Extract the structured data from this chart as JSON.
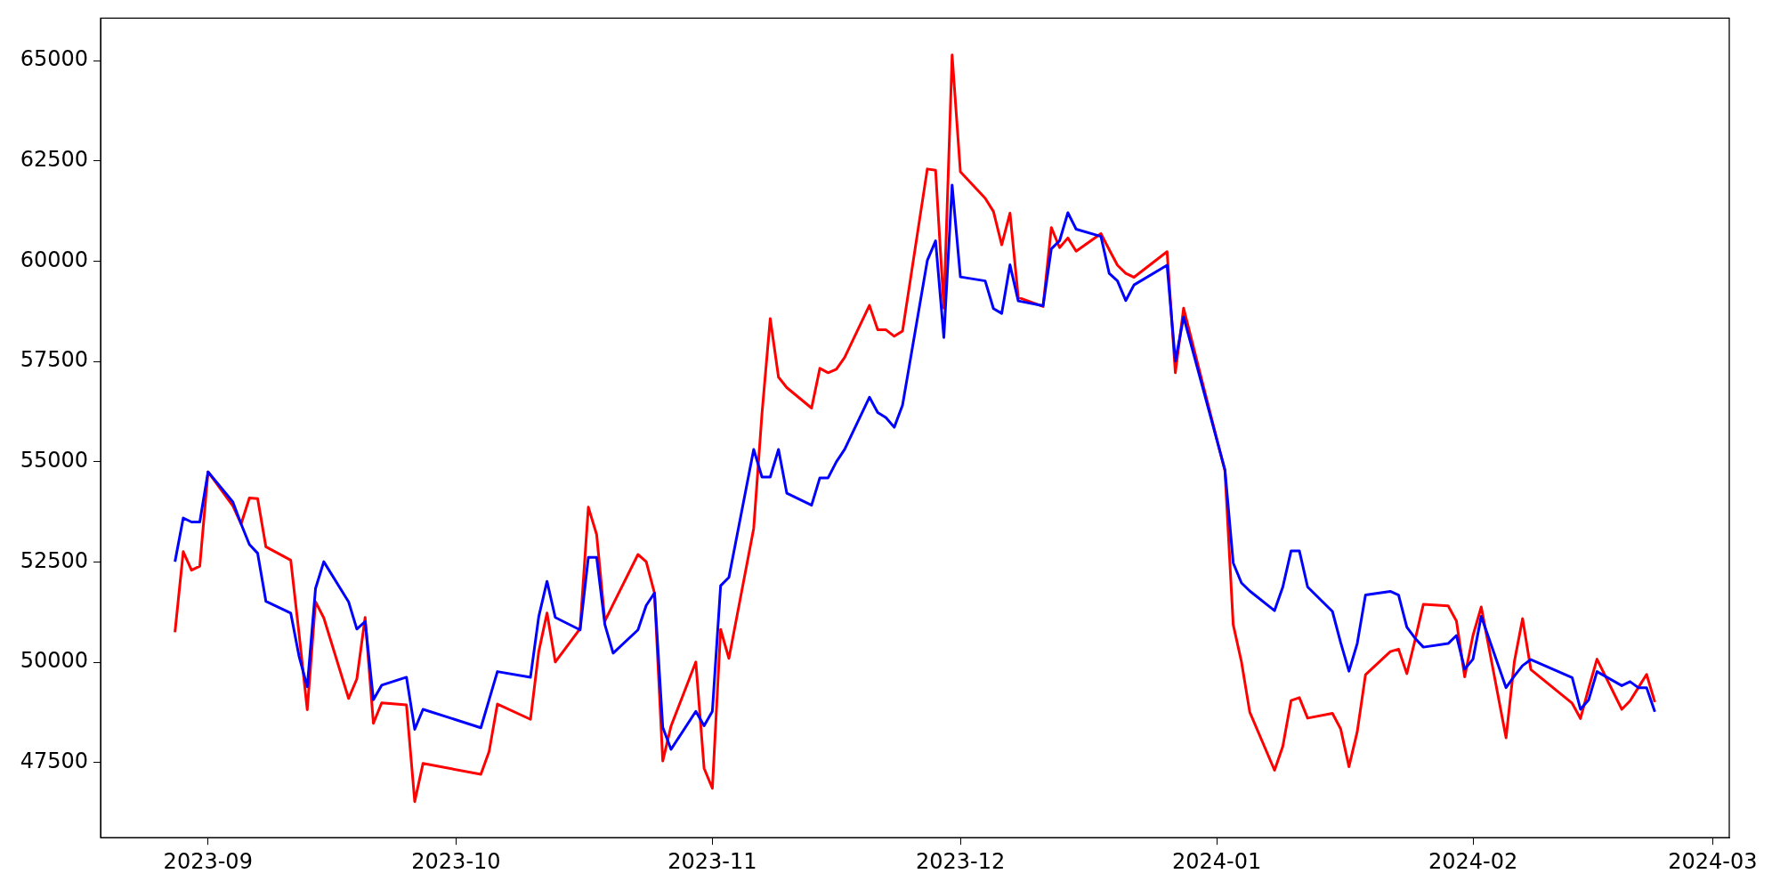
{
  "chart_data": {
    "type": "line",
    "x": [
      "2023-08-28",
      "2023-08-29",
      "2023-08-30",
      "2023-08-31",
      "2023-09-01",
      "2023-09-04",
      "2023-09-05",
      "2023-09-06",
      "2023-09-07",
      "2023-09-08",
      "2023-09-11",
      "2023-09-12",
      "2023-09-13",
      "2023-09-14",
      "2023-09-15",
      "2023-09-18",
      "2023-09-19",
      "2023-09-20",
      "2023-09-21",
      "2023-09-22",
      "2023-09-25",
      "2023-09-26",
      "2023-09-27",
      "2023-10-04",
      "2023-10-05",
      "2023-10-06",
      "2023-10-10",
      "2023-10-11",
      "2023-10-12",
      "2023-10-13",
      "2023-10-16",
      "2023-10-17",
      "2023-10-18",
      "2023-10-19",
      "2023-10-20",
      "2023-10-23",
      "2023-10-24",
      "2023-10-25",
      "2023-10-26",
      "2023-10-27",
      "2023-10-30",
      "2023-10-31",
      "2023-11-01",
      "2023-11-02",
      "2023-11-03",
      "2023-11-06",
      "2023-11-07",
      "2023-11-08",
      "2023-11-09",
      "2023-11-10",
      "2023-11-13",
      "2023-11-14",
      "2023-11-15",
      "2023-11-16",
      "2023-11-17",
      "2023-11-20",
      "2023-11-21",
      "2023-11-22",
      "2023-11-23",
      "2023-11-24",
      "2023-11-27",
      "2023-11-28",
      "2023-11-29",
      "2023-11-30",
      "2023-12-01",
      "2023-12-04",
      "2023-12-05",
      "2023-12-06",
      "2023-12-07",
      "2023-12-08",
      "2023-12-11",
      "2023-12-12",
      "2023-12-13",
      "2023-12-14",
      "2023-12-15",
      "2023-12-18",
      "2023-12-19",
      "2023-12-20",
      "2023-12-21",
      "2023-12-22",
      "2023-12-26",
      "2023-12-27",
      "2023-12-28",
      "2024-01-02",
      "2024-01-03",
      "2024-01-04",
      "2024-01-05",
      "2024-01-08",
      "2024-01-09",
      "2024-01-10",
      "2024-01-11",
      "2024-01-12",
      "2024-01-15",
      "2024-01-16",
      "2024-01-17",
      "2024-01-18",
      "2024-01-19",
      "2024-01-22",
      "2024-01-23",
      "2024-01-24",
      "2024-01-25",
      "2024-01-26",
      "2024-01-29",
      "2024-01-30",
      "2024-01-31",
      "2024-02-01",
      "2024-02-02",
      "2024-02-05",
      "2024-02-06",
      "2024-02-07",
      "2024-02-08",
      "2024-02-13",
      "2024-02-14",
      "2024-02-15",
      "2024-02-16",
      "2024-02-19",
      "2024-02-20",
      "2024-02-21",
      "2024-02-22",
      "2024-02-23"
    ],
    "series": [
      {
        "color": "#ff0000",
        "values": [
          50750,
          52760,
          52300,
          52400,
          54750,
          53900,
          53450,
          54100,
          54080,
          52880,
          52550,
          50730,
          48820,
          51510,
          51110,
          49100,
          49590,
          51120,
          48480,
          48990,
          48940,
          46530,
          47480,
          47210,
          47780,
          48960,
          48580,
          50270,
          51230,
          50010,
          50840,
          53870,
          53190,
          51030,
          51450,
          52690,
          52510,
          51730,
          47540,
          48410,
          50010,
          47360,
          46860,
          50820,
          50100,
          53340,
          56200,
          58570,
          57110,
          56850,
          56340,
          57330,
          57220,
          57310,
          57600,
          58900,
          58290,
          58290,
          58130,
          58260,
          62300,
          62270,
          58830,
          65140,
          62230,
          61570,
          61240,
          60410,
          61200,
          59100,
          58870,
          60840,
          60340,
          60580,
          60250,
          60690,
          60290,
          59900,
          59700,
          59600,
          60240,
          57220,
          58830,
          54770,
          50940,
          50010,
          48760,
          47310,
          47910,
          49050,
          49120,
          48610,
          48730,
          48340,
          47400,
          48270,
          49690,
          50270,
          50330,
          49720,
          50560,
          51450,
          51410,
          51030,
          49640,
          50670,
          51380,
          48120,
          50010,
          51090,
          49820,
          48980,
          48600,
          49360,
          50080,
          48830,
          49040,
          49370,
          49700,
          49010
        ]
      },
      {
        "color": "#0000ff",
        "values": [
          52510,
          53600,
          53500,
          53500,
          54750,
          54000,
          53450,
          52940,
          52720,
          51520,
          51230,
          50160,
          49390,
          51840,
          52510,
          51510,
          50830,
          51020,
          49070,
          49430,
          49630,
          48330,
          48830,
          48370,
          49070,
          49770,
          49630,
          51140,
          52020,
          51120,
          50810,
          52620,
          52620,
          50940,
          50230,
          50810,
          51420,
          51730,
          48380,
          47830,
          48780,
          48420,
          48780,
          51910,
          52120,
          55310,
          54620,
          54620,
          55310,
          54220,
          53920,
          54600,
          54600,
          55000,
          55310,
          56610,
          56230,
          56100,
          55860,
          56410,
          60020,
          60510,
          58100,
          61900,
          59610,
          59510,
          58820,
          58700,
          59910,
          59010,
          58890,
          60310,
          60510,
          61210,
          60800,
          60620,
          59700,
          59510,
          59020,
          59410,
          59900,
          57510,
          58610,
          54800,
          52480,
          51980,
          51780,
          51290,
          51880,
          52780,
          52780,
          51880,
          51270,
          50490,
          49780,
          50470,
          51680,
          51770,
          51680,
          50880,
          50600,
          50380,
          50470,
          50670,
          49830,
          50080,
          51150,
          49370,
          49660,
          49920,
          50070,
          49620,
          48830,
          49070,
          49770,
          49420,
          49520,
          49370,
          49370,
          48770
        ]
      }
    ],
    "xlim": [
      "2023-08-19",
      "2024-03-03"
    ],
    "xticks": [
      {
        "value": "2023-09-01",
        "label": "2023-09"
      },
      {
        "value": "2023-10-01",
        "label": "2023-10"
      },
      {
        "value": "2023-11-01",
        "label": "2023-11"
      },
      {
        "value": "2023-12-01",
        "label": "2023-12"
      },
      {
        "value": "2024-01-01",
        "label": "2024-01"
      },
      {
        "value": "2024-02-01",
        "label": "2024-02"
      },
      {
        "value": "2024-03-01",
        "label": "2024-03"
      }
    ],
    "ylim": [
      45630,
      66060
    ],
    "yticks": [
      47500,
      50000,
      52500,
      55000,
      57500,
      60000,
      62500,
      65000
    ],
    "grid": false,
    "legend": false
  }
}
